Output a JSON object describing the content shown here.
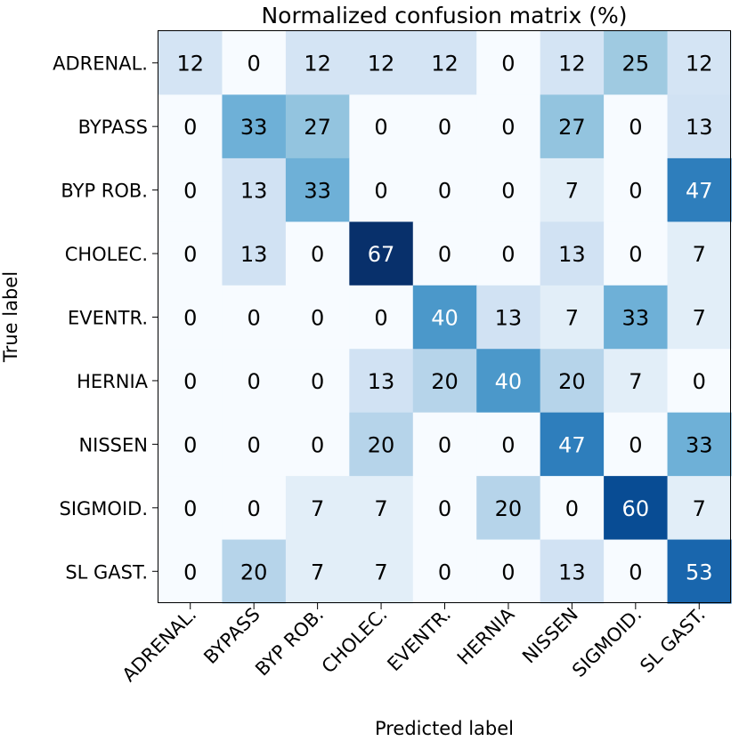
{
  "chart_data": {
    "type": "heatmap",
    "title": "Normalized confusion matrix (%)",
    "xlabel": "Predicted label",
    "ylabel": "True label",
    "x_categories": [
      "ADRENAL.",
      "BYPASS",
      "BYP ROB.",
      "CHOLEC.",
      "EVENTR.",
      "HERNIA",
      "NISSEN",
      "SIGMOID.",
      "SL GAST."
    ],
    "y_categories": [
      "ADRENAL.",
      "BYPASS",
      "BYP ROB.",
      "CHOLEC.",
      "EVENTR.",
      "HERNIA",
      "NISSEN",
      "SIGMOID.",
      "SL GAST."
    ],
    "values": [
      [
        12,
        0,
        12,
        12,
        12,
        0,
        12,
        25,
        12
      ],
      [
        0,
        33,
        27,
        0,
        0,
        0,
        27,
        0,
        13
      ],
      [
        0,
        13,
        33,
        0,
        0,
        0,
        7,
        0,
        47
      ],
      [
        0,
        13,
        0,
        67,
        0,
        0,
        13,
        0,
        7
      ],
      [
        0,
        0,
        0,
        0,
        40,
        13,
        7,
        33,
        7
      ],
      [
        0,
        0,
        0,
        13,
        20,
        40,
        20,
        7,
        0
      ],
      [
        0,
        0,
        0,
        20,
        0,
        0,
        47,
        0,
        33
      ],
      [
        0,
        0,
        7,
        7,
        0,
        20,
        0,
        60,
        7
      ],
      [
        0,
        20,
        7,
        7,
        0,
        0,
        13,
        0,
        53
      ]
    ],
    "colormap": "Blues",
    "colormap_stops": [
      "#f7fbff",
      "#deebf7",
      "#c6dbef",
      "#9ecae1",
      "#6baed6",
      "#4292c6",
      "#2171b5",
      "#08519c",
      "#08306b"
    ],
    "text_colors": {
      "light": "#ffffff",
      "dark": "#000000"
    },
    "grid": false,
    "legend": "none"
  }
}
